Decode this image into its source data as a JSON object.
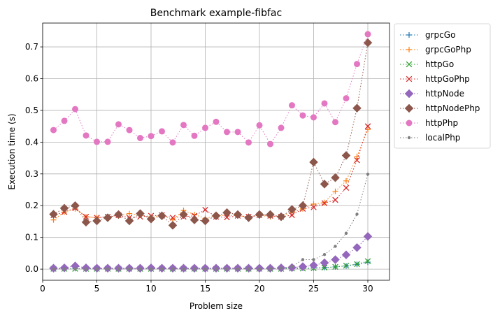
{
  "chart_data": {
    "type": "line",
    "title": "Benchmark example-fibfac",
    "xlabel": "Problem size",
    "ylabel": "Execution time (s)",
    "xlim": [
      0,
      32
    ],
    "ylim": [
      -0.035,
      0.775
    ],
    "xticks": [
      0,
      5,
      10,
      15,
      20,
      25,
      30
    ],
    "yticks": [
      0.0,
      0.1,
      0.2,
      0.3,
      0.4,
      0.5,
      0.6,
      0.7
    ],
    "grid": true,
    "legend_position": "outside-top-right",
    "x": [
      1,
      2,
      3,
      4,
      5,
      6,
      7,
      8,
      9,
      10,
      11,
      12,
      13,
      14,
      15,
      16,
      17,
      18,
      19,
      20,
      21,
      22,
      23,
      24,
      25,
      26,
      27,
      28,
      29,
      30
    ],
    "series": [
      {
        "name": "grpcGo",
        "color": "#1f77b4",
        "marker": "plus",
        "values": [
          0.002,
          0.002,
          0.002,
          0.002,
          0.002,
          0.002,
          0.002,
          0.002,
          0.002,
          0.002,
          0.002,
          0.002,
          0.002,
          0.002,
          0.002,
          0.002,
          0.002,
          0.002,
          0.002,
          0.002,
          0.002,
          0.002,
          0.003,
          0.003,
          0.004,
          0.005,
          0.007,
          0.01,
          0.015,
          0.022
        ]
      },
      {
        "name": "grpcGoPhp",
        "color": "#ff7f0e",
        "marker": "plus",
        "values": [
          0.155,
          0.18,
          0.19,
          0.165,
          0.162,
          0.165,
          0.168,
          0.175,
          0.17,
          0.163,
          0.17,
          0.155,
          0.185,
          0.172,
          0.16,
          0.168,
          0.17,
          0.168,
          0.165,
          0.17,
          0.165,
          0.168,
          0.178,
          0.19,
          0.205,
          0.21,
          0.245,
          0.278,
          0.355,
          0.44
        ]
      },
      {
        "name": "httpGo",
        "color": "#2ca02c",
        "marker": "x",
        "values": [
          0.001,
          0.001,
          0.001,
          0.001,
          0.001,
          0.001,
          0.001,
          0.001,
          0.001,
          0.001,
          0.001,
          0.001,
          0.001,
          0.001,
          0.001,
          0.001,
          0.001,
          0.001,
          0.001,
          0.001,
          0.001,
          0.001,
          0.002,
          0.002,
          0.003,
          0.005,
          0.007,
          0.011,
          0.016,
          0.025
        ]
      },
      {
        "name": "httpGoPhp",
        "color": "#d62728",
        "marker": "x",
        "values": [
          0.17,
          0.18,
          0.192,
          0.165,
          0.162,
          0.165,
          0.17,
          0.162,
          0.165,
          0.168,
          0.17,
          0.162,
          0.165,
          0.168,
          0.187,
          0.165,
          0.163,
          0.168,
          0.165,
          0.17,
          0.168,
          0.165,
          0.17,
          0.19,
          0.195,
          0.208,
          0.218,
          0.256,
          0.343,
          0.45
        ]
      },
      {
        "name": "httpNode",
        "color": "#9467bd",
        "marker": "diamond",
        "values": [
          0.003,
          0.004,
          0.01,
          0.004,
          0.003,
          0.003,
          0.003,
          0.003,
          0.003,
          0.004,
          0.003,
          0.003,
          0.003,
          0.003,
          0.003,
          0.003,
          0.003,
          0.003,
          0.003,
          0.003,
          0.003,
          0.004,
          0.005,
          0.008,
          0.012,
          0.02,
          0.03,
          0.045,
          0.068,
          0.103
        ]
      },
      {
        "name": "httpNodePhp",
        "color": "#8c564b",
        "marker": "diamond",
        "values": [
          0.173,
          0.192,
          0.2,
          0.148,
          0.152,
          0.162,
          0.172,
          0.152,
          0.175,
          0.158,
          0.168,
          0.138,
          0.172,
          0.155,
          0.152,
          0.168,
          0.178,
          0.172,
          0.162,
          0.172,
          0.172,
          0.165,
          0.188,
          0.2,
          0.337,
          0.268,
          0.288,
          0.358,
          0.507,
          0.713
        ]
      },
      {
        "name": "httpPhp",
        "color": "#e377c2",
        "marker": "circle",
        "values": [
          0.438,
          0.467,
          0.504,
          0.421,
          0.401,
          0.401,
          0.456,
          0.438,
          0.413,
          0.419,
          0.434,
          0.399,
          0.454,
          0.42,
          0.445,
          0.464,
          0.432,
          0.432,
          0.399,
          0.453,
          0.394,
          0.445,
          0.516,
          0.484,
          0.478,
          0.522,
          0.463,
          0.538,
          0.646,
          0.74
        ]
      },
      {
        "name": "localPhp",
        "color": "#7f7f7f",
        "marker": "dot",
        "values": [
          0.001,
          0.001,
          0.001,
          0.001,
          0.001,
          0.001,
          0.001,
          0.001,
          0.001,
          0.001,
          0.001,
          0.001,
          0.001,
          0.001,
          0.001,
          0.001,
          0.001,
          0.001,
          0.001,
          0.001,
          0.001,
          0.003,
          0.008,
          0.03,
          0.03,
          0.046,
          0.072,
          0.113,
          0.173,
          0.299
        ]
      }
    ]
  }
}
